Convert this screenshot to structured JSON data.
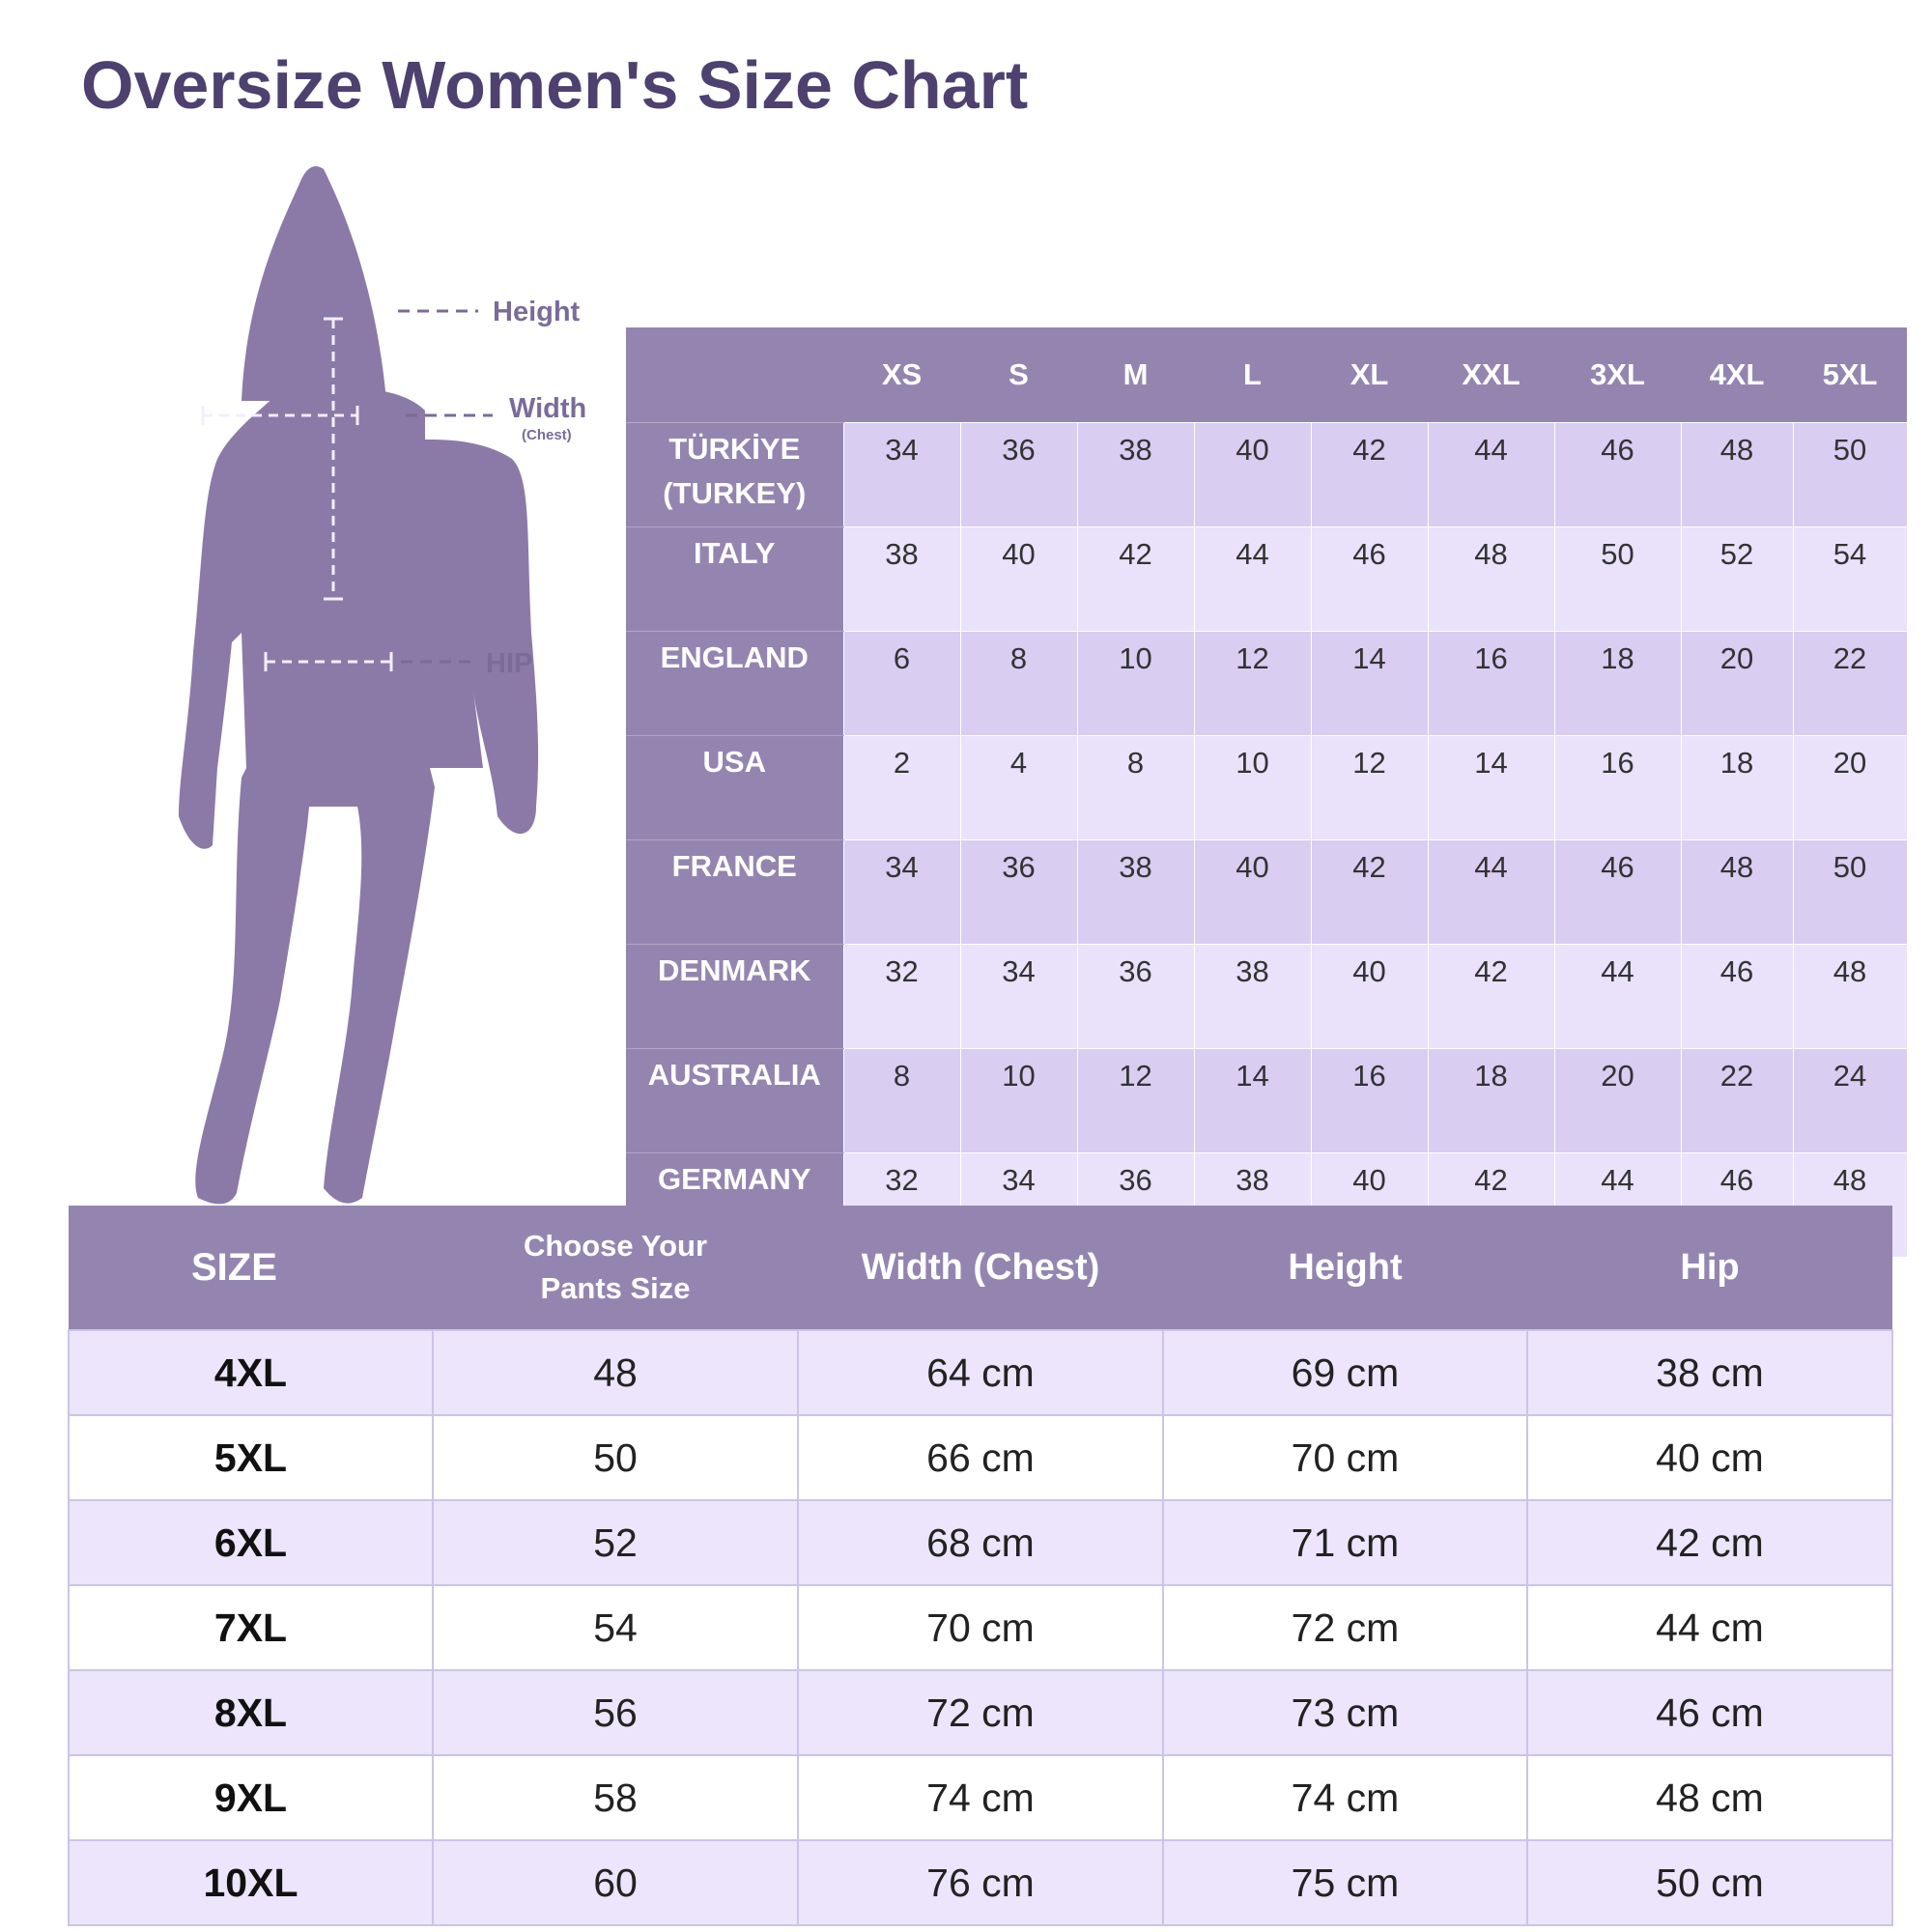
{
  "title": "Oversize Women's Size Chart",
  "figure": {
    "labels": {
      "height": "Height",
      "width": "Width",
      "width_sub": "(Chest)",
      "hip": "HIP"
    },
    "colors": {
      "silhouette": "#8b7aa7",
      "label": "#7b6b9a"
    }
  },
  "country_table": {
    "sizes": [
      "XS",
      "S",
      "M",
      "L",
      "XL",
      "XXL",
      "3XL",
      "4XL",
      "5XL"
    ],
    "rows": [
      {
        "country": "TÜRKİYE (TURKEY)",
        "values": [
          "34",
          "36",
          "38",
          "40",
          "42",
          "44",
          "46",
          "48",
          "50"
        ]
      },
      {
        "country": "ITALY",
        "values": [
          "38",
          "40",
          "42",
          "44",
          "46",
          "48",
          "50",
          "52",
          "54"
        ]
      },
      {
        "country": "ENGLAND",
        "values": [
          "6",
          "8",
          "10",
          "12",
          "14",
          "16",
          "18",
          "20",
          "22"
        ]
      },
      {
        "country": "USA",
        "values": [
          "2",
          "4",
          "8",
          "10",
          "12",
          "14",
          "16",
          "18",
          "20"
        ]
      },
      {
        "country": "FRANCE",
        "values": [
          "34",
          "36",
          "38",
          "40",
          "42",
          "44",
          "46",
          "48",
          "50"
        ]
      },
      {
        "country": "DENMARK",
        "values": [
          "32",
          "34",
          "36",
          "38",
          "40",
          "42",
          "44",
          "46",
          "48"
        ]
      },
      {
        "country": "AUSTRALIA",
        "values": [
          "8",
          "10",
          "12",
          "14",
          "16",
          "18",
          "20",
          "22",
          "24"
        ]
      },
      {
        "country": "GERMANY",
        "values": [
          "32",
          "34",
          "36",
          "38",
          "40",
          "42",
          "44",
          "46",
          "48"
        ]
      }
    ]
  },
  "size_table": {
    "headers": {
      "size": "SIZE",
      "pants_line1": "Choose Your",
      "pants_line2": "Pants Size",
      "width": "Width (Chest)",
      "height": "Height",
      "hip": "Hip"
    },
    "rows": [
      {
        "size": "4XL",
        "pants": "48",
        "width": "64 cm",
        "height": "69 cm",
        "hip": "38 cm"
      },
      {
        "size": "5XL",
        "pants": "50",
        "width": "66 cm",
        "height": "70 cm",
        "hip": "40 cm"
      },
      {
        "size": "6XL",
        "pants": "52",
        "width": "68 cm",
        "height": "71 cm",
        "hip": "42 cm"
      },
      {
        "size": "7XL",
        "pants": "54",
        "width": "70 cm",
        "height": "72 cm",
        "hip": "44 cm"
      },
      {
        "size": "8XL",
        "pants": "56",
        "width": "72 cm",
        "height": "73 cm",
        "hip": "46 cm"
      },
      {
        "size": "9XL",
        "pants": "58",
        "width": "74 cm",
        "height": "74 cm",
        "hip": "48 cm"
      },
      {
        "size": "10XL",
        "pants": "60",
        "width": "76 cm",
        "height": "75 cm",
        "hip": "50 cm"
      }
    ]
  },
  "colors": {
    "title": "#4e4170",
    "header_bg": "#9485b0",
    "row_light": "#e9e2fa",
    "row_dark": "#d9cdf2",
    "size_row_tint": "#ece5fb"
  }
}
